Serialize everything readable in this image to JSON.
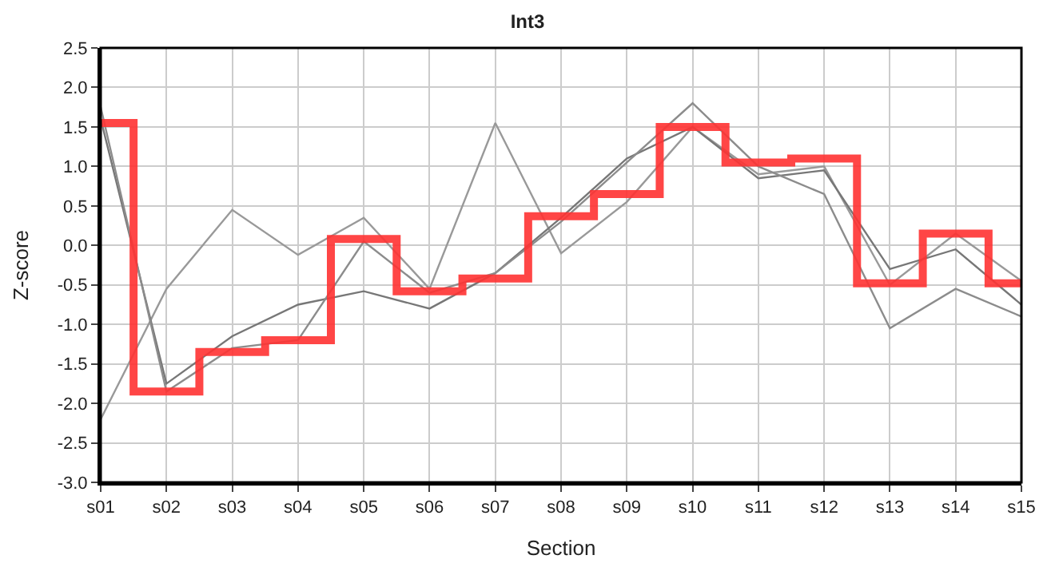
{
  "chart_data": {
    "type": "line",
    "title": "Int3",
    "xlabel": "Section",
    "ylabel": "Z-score",
    "categories": [
      "s01",
      "s02",
      "s03",
      "s04",
      "s05",
      "s06",
      "s07",
      "s08",
      "s09",
      "s10",
      "s11",
      "s12",
      "s13",
      "s14",
      "s15"
    ],
    "ylim": [
      -3.0,
      2.5
    ],
    "yticks": [
      {
        "value": -3.0,
        "label": "-3.0"
      },
      {
        "value": -2.5,
        "label": "-2.5"
      },
      {
        "value": -2.0,
        "label": "-2.0"
      },
      {
        "value": -1.5,
        "label": "-1.5"
      },
      {
        "value": -1.0,
        "label": "-1.0"
      },
      {
        "value": -0.5,
        "label": "-0.5"
      },
      {
        "value": 0,
        "label": "0.0"
      },
      {
        "value": 0.5,
        "label": "0.5"
      },
      {
        "value": 1.0,
        "label": "1.0"
      },
      {
        "value": 1.5,
        "label": "1.5"
      },
      {
        "value": 2.0,
        "label": "2.0"
      },
      {
        "value": 2.5,
        "label": "2.5"
      }
    ],
    "grid": true,
    "marker": "none",
    "series": [
      {
        "color": "#999999",
        "values": [
          -2.2,
          -0.55,
          0.45,
          -0.12,
          0.35,
          -0.55,
          1.55,
          -0.1,
          0.55,
          1.5,
          0.9,
          1.0,
          -0.5,
          0.15,
          -0.45
        ]
      },
      {
        "color": "#777777",
        "values": [
          1.6,
          -1.75,
          -1.15,
          -0.75,
          -0.58,
          -0.8,
          -0.35,
          0.35,
          1.1,
          1.5,
          0.85,
          0.95,
          -0.3,
          -0.05,
          -0.75
        ]
      },
      {
        "color": "#8c8c8c",
        "values": [
          1.75,
          -1.85,
          -1.3,
          -1.2,
          0.05,
          -0.6,
          -0.35,
          0.3,
          1.05,
          1.8,
          1.0,
          0.65,
          -1.05,
          -0.55,
          -0.9
        ]
      },
      {
        "type": "step",
        "color": "#ff3333",
        "values": [
          1.55,
          -1.85,
          -1.35,
          -1.2,
          0.08,
          -0.58,
          -0.42,
          0.37,
          0.65,
          1.5,
          1.05,
          1.1,
          -0.48,
          0.15,
          -0.48
        ]
      }
    ]
  }
}
